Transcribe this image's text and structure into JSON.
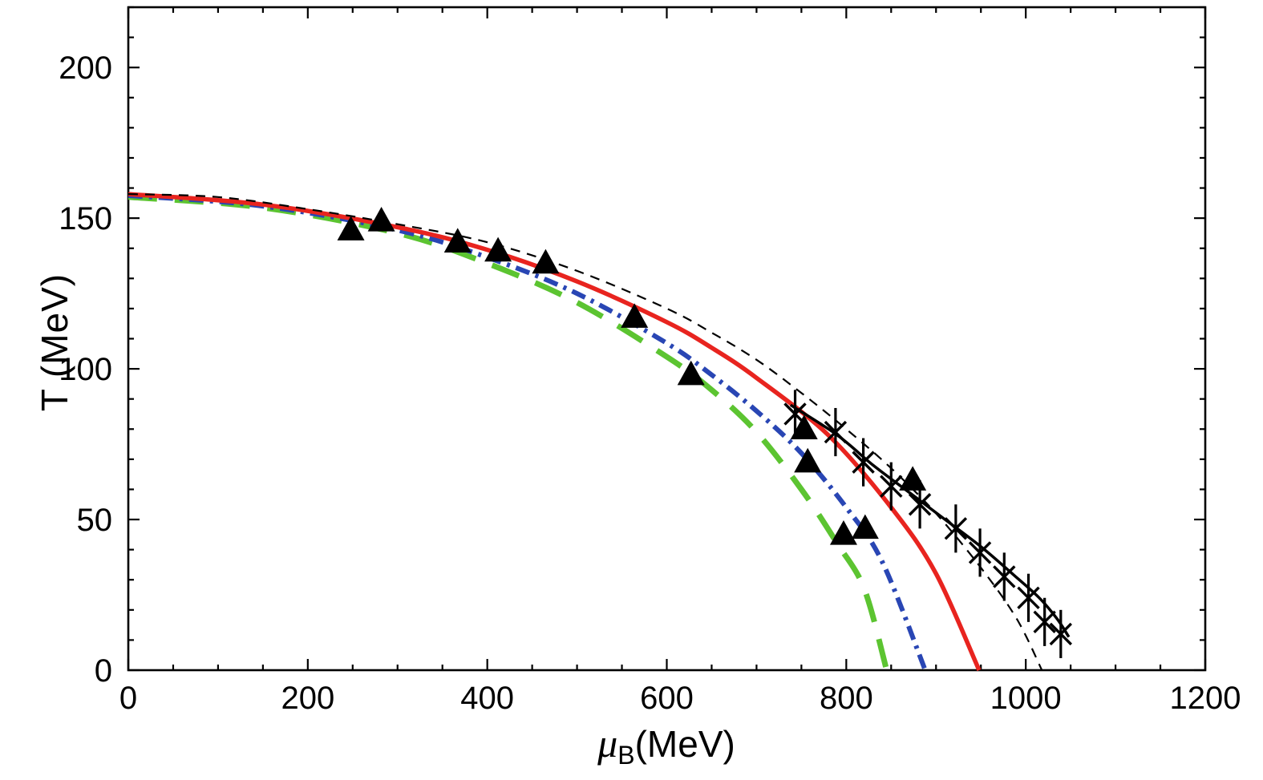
{
  "figure": {
    "background": "#ffffff",
    "frame_color": "#000000",
    "tick_color": "#000000"
  },
  "axes": {
    "y_label": "T (MeV)",
    "x_label_mu": "μ",
    "x_label_sub": "B",
    "x_label_unit": "(MeV)",
    "x_tick_labels": [
      "0",
      "200",
      "400",
      "600",
      "800",
      "1000",
      "1200"
    ],
    "y_tick_labels": [
      "0",
      "50",
      "100",
      "150",
      "200"
    ]
  },
  "chart_data": {
    "type": "line",
    "title": "",
    "xlabel": "μB (MeV)",
    "ylabel": "T (MeV)",
    "xlim": [
      0,
      1200
    ],
    "ylim": [
      0,
      220
    ],
    "x_ticks": [
      0,
      200,
      400,
      600,
      800,
      1000,
      1200
    ],
    "y_ticks": [
      0,
      50,
      100,
      150,
      200
    ],
    "x_minor_step": 50,
    "y_minor_step": 10,
    "grid": false,
    "legend": "none",
    "series": [
      {
        "name": "green-long-dashed-curve",
        "color": "#5cc431",
        "style": "long-dash",
        "width": 7,
        "points": [
          [
            0,
            157
          ],
          [
            150,
            153.5
          ],
          [
            300,
            145
          ],
          [
            400,
            135
          ],
          [
            500,
            122
          ],
          [
            600,
            104
          ],
          [
            650,
            93
          ],
          [
            700,
            79
          ],
          [
            750,
            60
          ],
          [
            790,
            42
          ],
          [
            820,
            27
          ],
          [
            845,
            0
          ]
        ]
      },
      {
        "name": "blue-dash-dot-curve",
        "color": "#2946b4",
        "style": "dash-dot",
        "width": 6,
        "points": [
          [
            0,
            157.5
          ],
          [
            150,
            154
          ],
          [
            300,
            146
          ],
          [
            400,
            137
          ],
          [
            500,
            125
          ],
          [
            600,
            108.5
          ],
          [
            650,
            98
          ],
          [
            700,
            86
          ],
          [
            750,
            72
          ],
          [
            800,
            54
          ],
          [
            840,
            36
          ],
          [
            888,
            0
          ]
        ]
      },
      {
        "name": "red-solid-curve",
        "color": "#e8241f",
        "style": "solid",
        "width": 5.5,
        "points": [
          [
            0,
            158
          ],
          [
            150,
            154.5
          ],
          [
            300,
            147
          ],
          [
            400,
            139.5
          ],
          [
            500,
            129
          ],
          [
            600,
            115.5
          ],
          [
            650,
            107
          ],
          [
            700,
            97
          ],
          [
            780,
            78
          ],
          [
            850,
            54
          ],
          [
            900,
            32
          ],
          [
            948,
            0
          ]
        ]
      },
      {
        "name": "black-thin-dashed-curve",
        "color": "#000000",
        "style": "dashed",
        "width": 2.2,
        "points": [
          [
            0,
            158
          ],
          [
            100,
            157
          ],
          [
            200,
            153
          ],
          [
            300,
            148
          ],
          [
            400,
            142
          ],
          [
            500,
            132.5
          ],
          [
            600,
            120
          ],
          [
            650,
            112
          ],
          [
            700,
            103
          ],
          [
            750,
            92
          ],
          [
            800,
            80
          ],
          [
            850,
            67
          ],
          [
            900,
            52
          ],
          [
            950,
            34
          ],
          [
            990,
            17
          ],
          [
            1018,
            0
          ]
        ]
      },
      {
        "name": "black-solid-fit-line",
        "color": "#000000",
        "style": "solid",
        "width": 3.5,
        "points": [
          [
            738,
            88
          ],
          [
            790,
            78
          ],
          [
            830,
            68
          ],
          [
            870,
            59
          ],
          [
            910,
            50
          ],
          [
            950,
            41
          ],
          [
            985,
            32
          ],
          [
            1015,
            24
          ],
          [
            1035,
            17
          ],
          [
            1048,
            11
          ]
        ]
      }
    ],
    "scatter": [
      {
        "name": "freeze-out-triangles",
        "marker": "triangle",
        "color": "#000000",
        "size": 17,
        "points": [
          [
            248,
            146
          ],
          [
            282,
            149
          ],
          [
            367,
            142
          ],
          [
            412,
            139
          ],
          [
            465,
            135
          ],
          [
            564,
            117
          ],
          [
            627,
            98
          ],
          [
            753,
            80
          ],
          [
            757,
            69
          ],
          [
            874,
            63
          ],
          [
            797,
            45
          ],
          [
            821,
            47
          ]
        ]
      },
      {
        "name": "freeze-out-crosses",
        "marker": "x-errorbar",
        "color": "#000000",
        "size": 13,
        "error": 8,
        "points": [
          [
            743,
            85
          ],
          [
            788,
            79
          ],
          [
            819,
            69
          ],
          [
            850,
            61
          ],
          [
            882,
            55
          ],
          [
            922,
            47
          ],
          [
            949,
            39
          ],
          [
            976,
            31
          ],
          [
            1003,
            24
          ],
          [
            1021,
            16
          ],
          [
            1039,
            12
          ]
        ]
      }
    ]
  }
}
